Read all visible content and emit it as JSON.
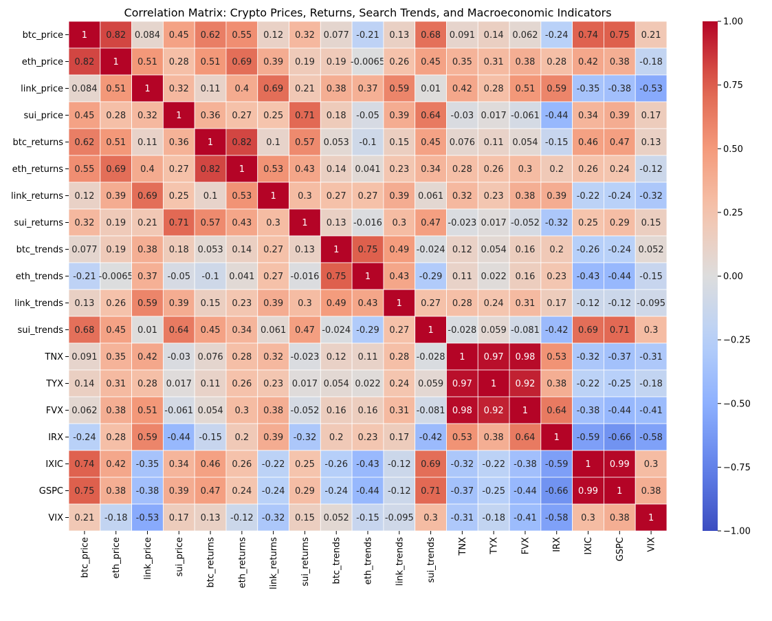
{
  "chart_data": {
    "type": "heatmap",
    "title": "Correlation Matrix: Crypto Prices, Returns, Search Trends, and Macroeconomic Indicators",
    "colormap": "coolwarm",
    "vmin": -1.0,
    "vmax": 1.0,
    "labels": [
      "btc_price",
      "eth_price",
      "link_price",
      "sui_price",
      "btc_returns",
      "eth_returns",
      "link_returns",
      "sui_returns",
      "btc_trends",
      "eth_trends",
      "link_trends",
      "sui_trends",
      "TNX",
      "TYX",
      "FVX",
      "IRX",
      "IXIC",
      "GSPC",
      "VIX"
    ],
    "annotations": [
      [
        "1",
        "0.82",
        "0.084",
        "0.45",
        "0.62",
        "0.55",
        "0.12",
        "0.32",
        "0.077",
        "-0.21",
        "0.13",
        "0.68",
        "0.091",
        "0.14",
        "0.062",
        "-0.24",
        "0.74",
        "0.75",
        "0.21"
      ],
      [
        "0.82",
        "1",
        "0.51",
        "0.28",
        "0.51",
        "0.69",
        "0.39",
        "0.19",
        "0.19",
        "-0.0065",
        "0.26",
        "0.45",
        "0.35",
        "0.31",
        "0.38",
        "0.28",
        "0.42",
        "0.38",
        "-0.18"
      ],
      [
        "0.084",
        "0.51",
        "1",
        "0.32",
        "0.11",
        "0.4",
        "0.69",
        "0.21",
        "0.38",
        "0.37",
        "0.59",
        "0.01",
        "0.42",
        "0.28",
        "0.51",
        "0.59",
        "-0.35",
        "-0.38",
        "-0.53"
      ],
      [
        "0.45",
        "0.28",
        "0.32",
        "1",
        "0.36",
        "0.27",
        "0.25",
        "0.71",
        "0.18",
        "-0.05",
        "0.39",
        "0.64",
        "-0.03",
        "0.017",
        "-0.061",
        "-0.44",
        "0.34",
        "0.39",
        "0.17"
      ],
      [
        "0.62",
        "0.51",
        "0.11",
        "0.36",
        "1",
        "0.82",
        "0.1",
        "0.57",
        "0.053",
        "-0.1",
        "0.15",
        "0.45",
        "0.076",
        "0.11",
        "0.054",
        "-0.15",
        "0.46",
        "0.47",
        "0.13"
      ],
      [
        "0.55",
        "0.69",
        "0.4",
        "0.27",
        "0.82",
        "1",
        "0.53",
        "0.43",
        "0.14",
        "0.041",
        "0.23",
        "0.34",
        "0.28",
        "0.26",
        "0.3",
        "0.2",
        "0.26",
        "0.24",
        "-0.12"
      ],
      [
        "0.12",
        "0.39",
        "0.69",
        "0.25",
        "0.1",
        "0.53",
        "1",
        "0.3",
        "0.27",
        "0.27",
        "0.39",
        "0.061",
        "0.32",
        "0.23",
        "0.38",
        "0.39",
        "-0.22",
        "-0.24",
        "-0.32"
      ],
      [
        "0.32",
        "0.19",
        "0.21",
        "0.71",
        "0.57",
        "0.43",
        "0.3",
        "1",
        "0.13",
        "-0.016",
        "0.3",
        "0.47",
        "-0.023",
        "0.017",
        "-0.052",
        "-0.32",
        "0.25",
        "0.29",
        "0.15"
      ],
      [
        "0.077",
        "0.19",
        "0.38",
        "0.18",
        "0.053",
        "0.14",
        "0.27",
        "0.13",
        "1",
        "0.75",
        "0.49",
        "-0.024",
        "0.12",
        "0.054",
        "0.16",
        "0.2",
        "-0.26",
        "-0.24",
        "0.052"
      ],
      [
        "-0.21",
        "-0.0065",
        "0.37",
        "-0.05",
        "-0.1",
        "0.041",
        "0.27",
        "-0.016",
        "0.75",
        "1",
        "0.43",
        "-0.29",
        "0.11",
        "0.022",
        "0.16",
        "0.23",
        "-0.43",
        "-0.44",
        "-0.15"
      ],
      [
        "0.13",
        "0.26",
        "0.59",
        "0.39",
        "0.15",
        "0.23",
        "0.39",
        "0.3",
        "0.49",
        "0.43",
        "1",
        "0.27",
        "0.28",
        "0.24",
        "0.31",
        "0.17",
        "-0.12",
        "-0.12",
        "-0.095"
      ],
      [
        "0.68",
        "0.45",
        "0.01",
        "0.64",
        "0.45",
        "0.34",
        "0.061",
        "0.47",
        "-0.024",
        "-0.29",
        "0.27",
        "1",
        "-0.028",
        "0.059",
        "-0.081",
        "-0.42",
        "0.69",
        "0.71",
        "0.3"
      ],
      [
        "0.091",
        "0.35",
        "0.42",
        "-0.03",
        "0.076",
        "0.28",
        "0.32",
        "-0.023",
        "0.12",
        "0.11",
        "0.28",
        "-0.028",
        "1",
        "0.97",
        "0.98",
        "0.53",
        "-0.32",
        "-0.37",
        "-0.31"
      ],
      [
        "0.14",
        "0.31",
        "0.28",
        "0.017",
        "0.11",
        "0.26",
        "0.23",
        "0.017",
        "0.054",
        "0.022",
        "0.24",
        "0.059",
        "0.97",
        "1",
        "0.92",
        "0.38",
        "-0.22",
        "-0.25",
        "-0.18"
      ],
      [
        "0.062",
        "0.38",
        "0.51",
        "-0.061",
        "0.054",
        "0.3",
        "0.38",
        "-0.052",
        "0.16",
        "0.16",
        "0.31",
        "-0.081",
        "0.98",
        "0.92",
        "1",
        "0.64",
        "-0.38",
        "-0.44",
        "-0.41"
      ],
      [
        "-0.24",
        "0.28",
        "0.59",
        "-0.44",
        "-0.15",
        "0.2",
        "0.39",
        "-0.32",
        "0.2",
        "0.23",
        "0.17",
        "-0.42",
        "0.53",
        "0.38",
        "0.64",
        "1",
        "-0.59",
        "-0.66",
        "-0.58"
      ],
      [
        "0.74",
        "0.42",
        "-0.35",
        "0.34",
        "0.46",
        "0.26",
        "-0.22",
        "0.25",
        "-0.26",
        "-0.43",
        "-0.12",
        "0.69",
        "-0.32",
        "-0.22",
        "-0.38",
        "-0.59",
        "1",
        "0.99",
        "0.3"
      ],
      [
        "0.75",
        "0.38",
        "-0.38",
        "0.39",
        "0.47",
        "0.24",
        "-0.24",
        "0.29",
        "-0.24",
        "-0.44",
        "-0.12",
        "0.71",
        "-0.37",
        "-0.25",
        "-0.44",
        "-0.66",
        "0.99",
        "1",
        "0.38"
      ],
      [
        "0.21",
        "-0.18",
        "-0.53",
        "0.17",
        "0.13",
        "-0.12",
        "-0.32",
        "0.15",
        "0.052",
        "-0.15",
        "-0.095",
        "0.3",
        "-0.31",
        "-0.18",
        "-0.41",
        "-0.58",
        "0.3",
        "0.38",
        "1"
      ]
    ],
    "colorbar_ticks": [
      "1.00",
      "0.75",
      "0.50",
      "0.25",
      "0.00",
      "−0.25",
      "−0.50",
      "−0.75",
      "−1.00"
    ],
    "colorbar_tick_values": [
      1.0,
      0.75,
      0.5,
      0.25,
      0.0,
      -0.25,
      -0.5,
      -0.75,
      -1.0
    ]
  }
}
